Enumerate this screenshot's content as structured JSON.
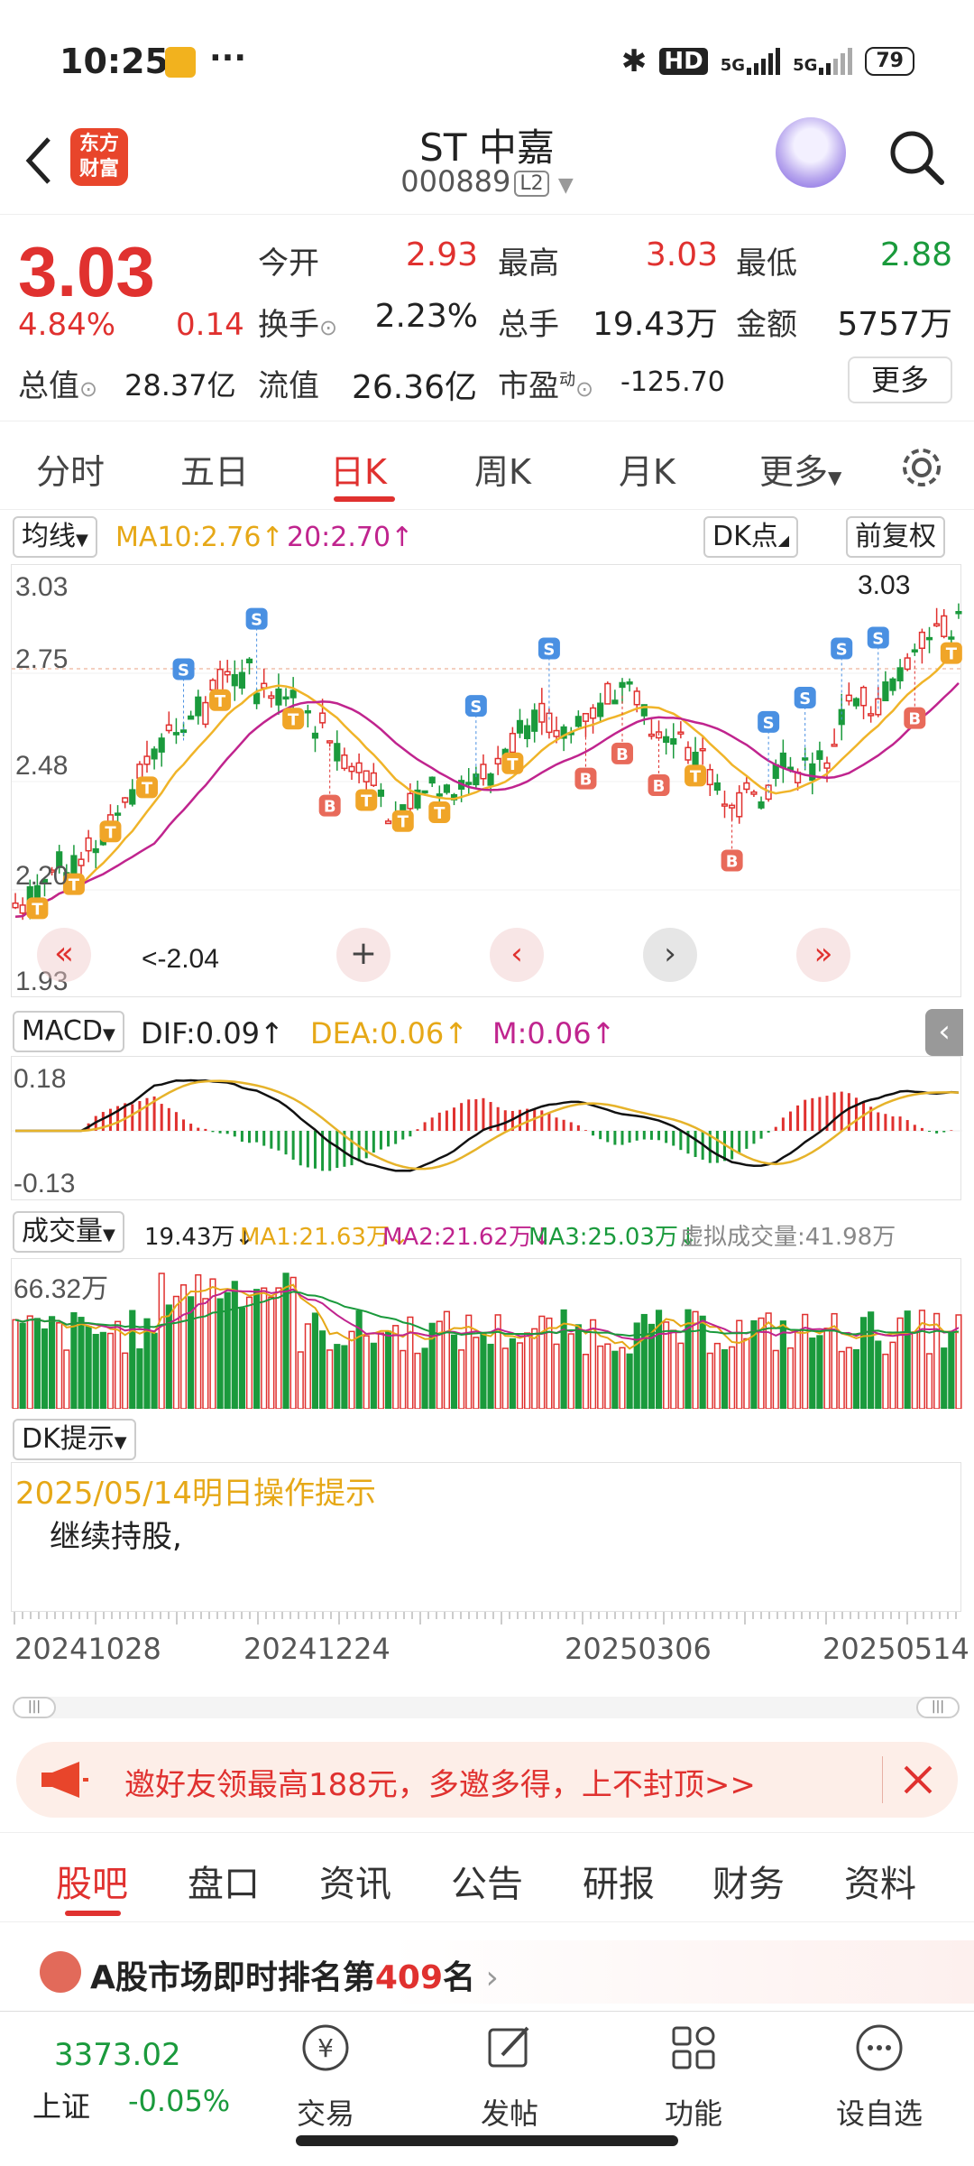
{
  "status_bar": {
    "time": "10:25",
    "dots": "···",
    "hd": "HD",
    "sig1": "5G",
    "sig2": "5G",
    "battery": "79"
  },
  "header": {
    "logo_line1": "东方",
    "logo_line2": "财富",
    "stock_name": "ST 中嘉",
    "stock_code": "000889",
    "level": "L2"
  },
  "quote": {
    "price": "3.03",
    "change_pct": "4.84%",
    "change": "0.14",
    "open_label": "今开",
    "open": "2.93",
    "high_label": "最高",
    "high": "3.03",
    "low_label": "最低",
    "low": "2.88",
    "turnover_label": "换手",
    "turnover": "2.23%",
    "volume_label": "总手",
    "volume": "19.43万",
    "amount_label": "金额",
    "amount": "5757万",
    "mktcap_label": "总值",
    "mktcap": "28.37亿",
    "float_label": "流值",
    "float": "26.36亿",
    "pe_label": "市盈",
    "pe_sup": "动",
    "pe": "-125.70",
    "more": "更多"
  },
  "tabs": [
    "分时",
    "五日",
    "日K",
    "周K",
    "月K",
    "更多"
  ],
  "ma_row": {
    "selector": "均线",
    "ma10": "MA10:2.76↑",
    "ma20": "20:2.70↑",
    "dk": "DK点",
    "adjust": "前复权"
  },
  "kline": {
    "y_top": "3.03",
    "y_mid1": "2.75",
    "y_mid2": "2.48",
    "y_mid3": "2.20",
    "y_bottom": "1.93",
    "max_label": "3.03",
    "min_label": "<-2.04",
    "colors": {
      "up": "#e0312f",
      "down": "#1a9a3c",
      "ma10": "#f0b429",
      "ma20": "#c0248e"
    }
  },
  "macd": {
    "selector": "MACD",
    "dif": "DIF:0.09↑",
    "dea": "DEA:0.06↑",
    "m": "M:0.06↑",
    "y_top": "0.18",
    "y_bottom": "-0.13"
  },
  "volume": {
    "selector": "成交量",
    "value": "19.43万↓",
    "ma1": "MA1:21.63万↓",
    "ma2": "MA2:21.62万↓",
    "ma3": "MA3:25.03万↓",
    "virtual": "虚拟成交量:41.98万",
    "y_top": "66.32万"
  },
  "dk": {
    "selector": "DK提示",
    "date_title": "2025/05/14明日操作提示",
    "advice": "继续持股,"
  },
  "dates": [
    "20241028",
    "20241224",
    "20250306",
    "20250514"
  ],
  "promo": {
    "text": "邀好友领最高188元，多邀多得，上不封顶>>"
  },
  "subtabs": [
    "股吧",
    "盘口",
    "资讯",
    "公告",
    "研报",
    "财务",
    "资料"
  ],
  "rank": {
    "prefix": "A股市场即时排名第",
    "number": "409",
    "suffix": "名"
  },
  "bottom_nav": {
    "index_value": "3373.02",
    "index_name": "上证",
    "index_change": "-0.05%",
    "items": [
      "交易",
      "发帖",
      "功能",
      "设自选"
    ]
  }
}
